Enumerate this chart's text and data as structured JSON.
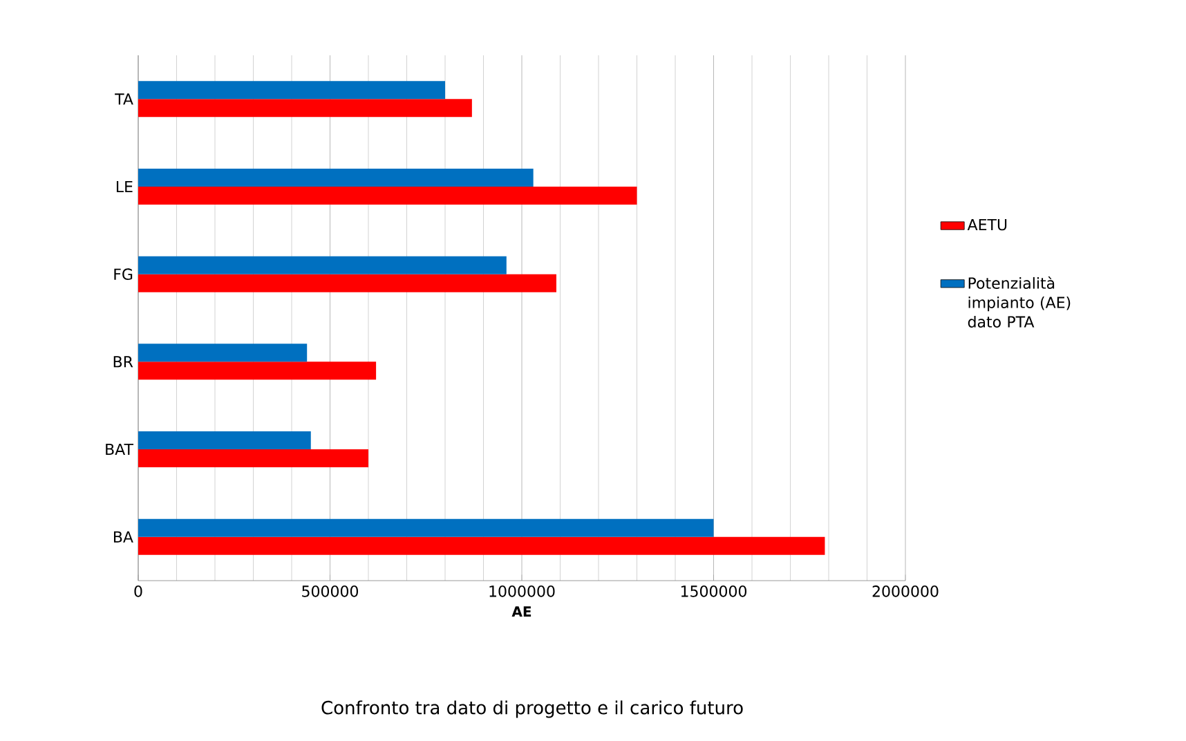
{
  "chart_data": {
    "type": "bar",
    "orientation": "horizontal",
    "xlabel": "AE",
    "categories": [
      "TA",
      "LE",
      "FG",
      "BR",
      "BAT",
      "BA"
    ],
    "series": [
      {
        "name": "AETU",
        "color": "#ff0000",
        "values": [
          870000,
          1300000,
          1090000,
          620000,
          600000,
          1790000
        ]
      },
      {
        "name": "Potenzialità impianto (AE) dato PTA",
        "color": "#0070c0",
        "values": [
          800000,
          1030000,
          960000,
          440000,
          450000,
          1500000
        ]
      }
    ],
    "xlim": [
      0,
      2000000
    ],
    "xticks": [
      0,
      500000,
      1000000,
      1500000,
      2000000
    ],
    "grid": "x",
    "legend": "right",
    "annotations": [
      "Confronto tra dato di progetto e il carico futuro"
    ]
  }
}
